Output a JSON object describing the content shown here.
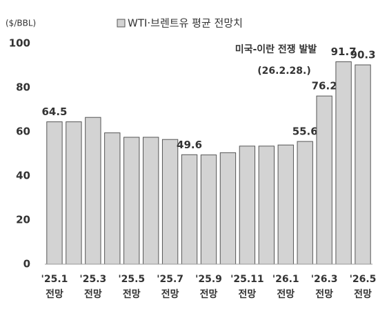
{
  "chart_data": {
    "type": "bar",
    "unit_label": "($/BBL)",
    "legend": "WTI·브렌트유 평균 전망치",
    "annotations": [
      "미국-이란 전쟁 발발",
      "(26.2.28.)"
    ],
    "categories": [
      "'25.1\n전망",
      null,
      "'25.3\n전망",
      null,
      "'25.5\n전망",
      null,
      "'25.7\n전망",
      null,
      "'25.9\n전망",
      null,
      "'25.11\n전망",
      null,
      "'26.1\n전망",
      null,
      "'26.3\n전망",
      null,
      "'26.5\n전망"
    ],
    "values": [
      64.5,
      64.5,
      66.5,
      59.5,
      57.5,
      57.5,
      56.5,
      49.6,
      49.5,
      50.5,
      53.5,
      53.5,
      54,
      55.6,
      76.2,
      91.7,
      90.3
    ],
    "value_labels": [
      "64.5",
      null,
      null,
      null,
      null,
      null,
      null,
      "49.6",
      null,
      null,
      null,
      null,
      null,
      "55.6",
      "76.2",
      "91.7",
      "90.3"
    ],
    "color": "#d3d3d3",
    "edge_color": "#555555",
    "ylim": [
      0,
      100
    ],
    "yticks": [
      0,
      20,
      40,
      60,
      80,
      100
    ],
    "grid": false
  }
}
